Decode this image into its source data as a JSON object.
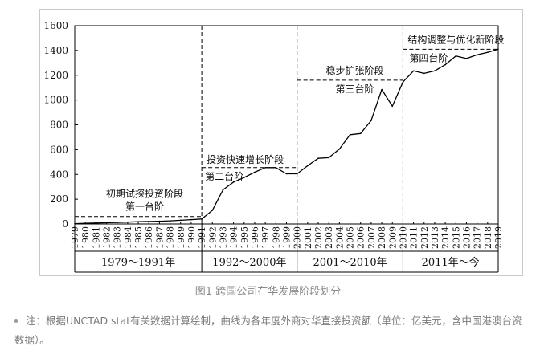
{
  "chart_data": {
    "type": "line",
    "title": "",
    "xlabel": "",
    "ylabel": "",
    "ylim": [
      0,
      1600
    ],
    "yticks": [
      0,
      200,
      400,
      600,
      800,
      1000,
      1200,
      1400,
      1600
    ],
    "x": [
      "1979",
      "1980",
      "1981",
      "1982",
      "1983",
      "1984",
      "1985",
      "1986",
      "1987",
      "1988",
      "1989",
      "1990",
      "1991",
      "1992",
      "1993",
      "1994",
      "1995",
      "1996",
      "1997",
      "1998",
      "1999",
      "2000",
      "2001",
      "2002",
      "2003",
      "2004",
      "2005",
      "2006",
      "2007",
      "2008",
      "2009",
      "2010",
      "2011",
      "2012",
      "2013",
      "2014",
      "2015",
      "2016",
      "2017",
      "2018",
      "2019"
    ],
    "series": [
      {
        "name": "各年度外商对华直接投资额（亿美元）",
        "values": [
          2,
          5,
          8,
          10,
          12,
          15,
          18,
          20,
          22,
          25,
          30,
          35,
          40,
          110,
          275,
          338,
          375,
          418,
          455,
          455,
          405,
          405,
          470,
          530,
          535,
          605,
          720,
          730,
          835,
          1085,
          950,
          1145,
          1235,
          1215,
          1235,
          1285,
          1355,
          1335,
          1365,
          1385,
          1410
        ]
      }
    ],
    "phase_dividers": [
      "1991",
      "2000",
      "2010"
    ],
    "phases": [
      {
        "name": "初期试探投资阶段",
        "stage": "第一台阶",
        "period": "1979～1991年",
        "start": "1979",
        "end": "1991",
        "level": 60
      },
      {
        "name": "投资快速增长阶段",
        "stage": "第二台阶",
        "period": "1992～2000年",
        "start": "1991",
        "end": "2000",
        "level": 455
      },
      {
        "name": "稳步扩张阶段",
        "stage": "第三台阶",
        "period": "2001～2010年",
        "start": "2000",
        "end": "2010",
        "level": 1160
      },
      {
        "name": "结构调整与优化新阶段",
        "stage": "第四台阶",
        "period": "2011年～今",
        "start": "2010",
        "end": "2019",
        "level": 1410
      }
    ]
  },
  "caption": "图1 跨国公司在华发展阶段划分",
  "note": "注：根据UNCTAD stat有关数据计算绘制，曲线为各年度外商对华直接投资额（单位：亿美元，含中国港澳台资数据）。"
}
